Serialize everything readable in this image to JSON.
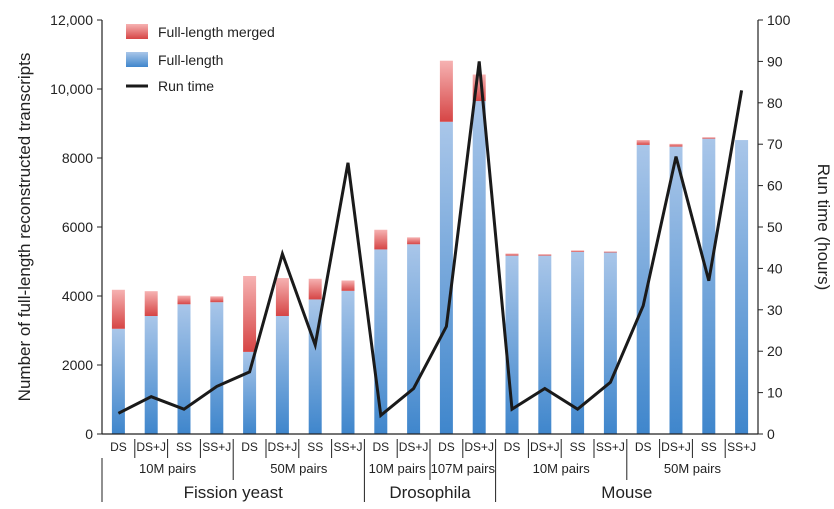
{
  "chart_data": {
    "type": "bar",
    "categories": [
      "DS",
      "DS+J",
      "SS",
      "SS+J",
      "DS",
      "DS+J",
      "SS",
      "SS+J",
      "DS",
      "DS+J",
      "DS",
      "DS+J",
      "DS",
      "DS+J",
      "SS",
      "SS+J",
      "DS",
      "DS+J",
      "SS",
      "SS+J"
    ],
    "series": [
      {
        "name": "Full-length",
        "values": [
          3050,
          3420,
          3760,
          3820,
          2380,
          3420,
          3900,
          4150,
          5350,
          5500,
          9050,
          9650,
          5170,
          5170,
          5280,
          5260,
          8380,
          8330,
          8560,
          8520
        ]
      },
      {
        "name": "Full-length merged",
        "values": [
          1130,
          720,
          250,
          170,
          2200,
          1100,
          600,
          300,
          570,
          200,
          1770,
          770,
          60,
          40,
          40,
          30,
          140,
          80,
          40,
          0
        ]
      },
      {
        "name": "Run time",
        "values": [
          5,
          9,
          6,
          11.5,
          15,
          43.5,
          21.5,
          65.5,
          4.5,
          11,
          26,
          90,
          6,
          11,
          6,
          12.5,
          31,
          67,
          37,
          83
        ]
      }
    ],
    "group_labels": [
      "10M pairs",
      "50M pairs",
      "10M pairs",
      "107M pairs",
      "10M pairs",
      "50M pairs"
    ],
    "organisms": [
      "Fission yeast",
      "Drosophila",
      "Mouse"
    ],
    "ylabel": "Number of full-length reconstructed transcripts",
    "y2label": "Run time (hours)",
    "ylim": [
      0,
      12000
    ],
    "y2lim": [
      0,
      100
    ],
    "yticks": [
      "0",
      "2000",
      "4000",
      "6000",
      "8000",
      "10,000",
      "12,000"
    ],
    "y2ticks": [
      "0",
      "10",
      "20",
      "30",
      "40",
      "50",
      "60",
      "70",
      "80",
      "90",
      "100"
    ],
    "legend": {
      "position": "top-left",
      "items": [
        "Full-length merged",
        "Full-length",
        "Run time"
      ]
    },
    "grid": false,
    "colors": {
      "full_length_top": "#a9c6e9",
      "full_length_bottom": "#3f86cc",
      "merged_top": "#f6b2b2",
      "merged_bottom": "#d64545",
      "run_time": "#1a1a1a"
    }
  }
}
